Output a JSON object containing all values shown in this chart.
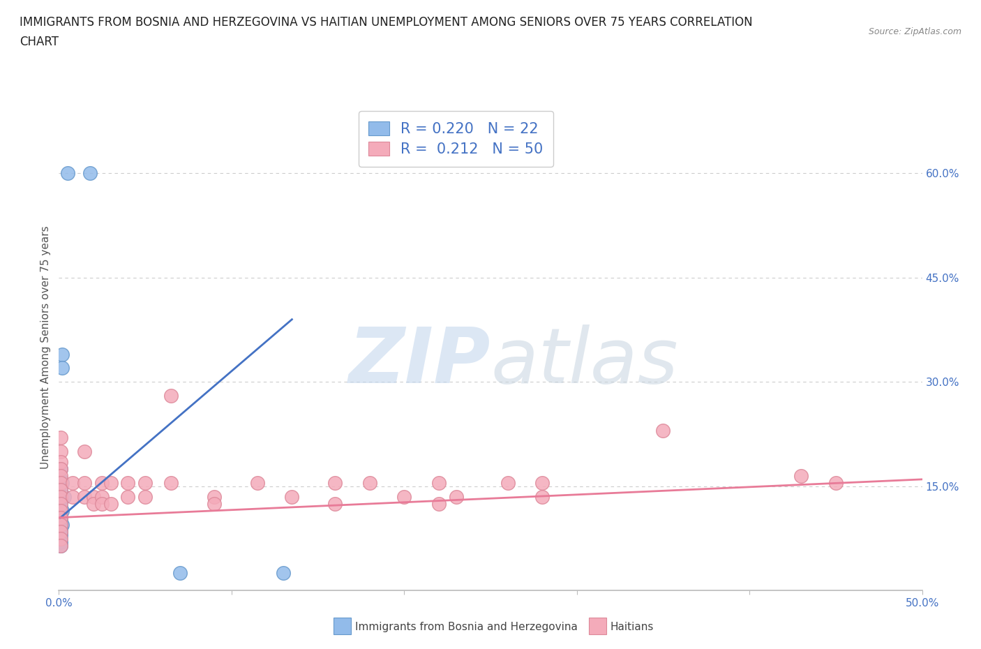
{
  "title_line1": "IMMIGRANTS FROM BOSNIA AND HERZEGOVINA VS HAITIAN UNEMPLOYMENT AMONG SENIORS OVER 75 YEARS CORRELATION",
  "title_line2": "CHART",
  "source": "Source: ZipAtlas.com",
  "ylabel": "Unemployment Among Seniors over 75 years",
  "xlim": [
    0,
    0.5
  ],
  "ylim": [
    0,
    0.7
  ],
  "xticks": [
    0.0,
    0.1,
    0.2,
    0.3,
    0.4,
    0.5
  ],
  "xticklabels": [
    "0.0%",
    "",
    "",
    "",
    "",
    "50.0%"
  ],
  "yticks_right": [
    0.15,
    0.3,
    0.45,
    0.6
  ],
  "ytick_right_labels": [
    "15.0%",
    "30.0%",
    "45.0%",
    "60.0%"
  ],
  "legend_blue_r": "R = 0.220",
  "legend_blue_n": "N = 22",
  "legend_pink_r": "R =  0.212",
  "legend_pink_n": "N = 50",
  "legend_label_blue": "Immigrants from Bosnia and Herzegovina",
  "legend_label_pink": "Haitians",
  "blue_color": "#92BBEA",
  "blue_edge_color": "#6699CC",
  "pink_color": "#F4ABBA",
  "pink_edge_color": "#DD8899",
  "trend_blue_color": "#4472C4",
  "trend_pink_color": "#E87B98",
  "background_color": "#FFFFFF",
  "grid_color": "#CCCCCC",
  "blue_scatter": [
    [
      0.005,
      0.6
    ],
    [
      0.018,
      0.6
    ],
    [
      0.002,
      0.34
    ],
    [
      0.002,
      0.32
    ],
    [
      0.001,
      0.175
    ],
    [
      0.001,
      0.16
    ],
    [
      0.002,
      0.155
    ],
    [
      0.001,
      0.145
    ],
    [
      0.003,
      0.135
    ],
    [
      0.001,
      0.13
    ],
    [
      0.001,
      0.12
    ],
    [
      0.002,
      0.115
    ],
    [
      0.001,
      0.105
    ],
    [
      0.001,
      0.1
    ],
    [
      0.002,
      0.095
    ],
    [
      0.001,
      0.09
    ],
    [
      0.001,
      0.085
    ],
    [
      0.001,
      0.08
    ],
    [
      0.001,
      0.07
    ],
    [
      0.001,
      0.065
    ],
    [
      0.07,
      0.025
    ],
    [
      0.13,
      0.025
    ]
  ],
  "pink_scatter": [
    [
      0.001,
      0.22
    ],
    [
      0.001,
      0.2
    ],
    [
      0.001,
      0.185
    ],
    [
      0.001,
      0.175
    ],
    [
      0.001,
      0.165
    ],
    [
      0.001,
      0.155
    ],
    [
      0.001,
      0.145
    ],
    [
      0.001,
      0.135
    ],
    [
      0.001,
      0.125
    ],
    [
      0.001,
      0.115
    ],
    [
      0.001,
      0.105
    ],
    [
      0.001,
      0.095
    ],
    [
      0.001,
      0.085
    ],
    [
      0.001,
      0.075
    ],
    [
      0.001,
      0.065
    ],
    [
      0.008,
      0.155
    ],
    [
      0.008,
      0.135
    ],
    [
      0.015,
      0.2
    ],
    [
      0.015,
      0.155
    ],
    [
      0.015,
      0.135
    ],
    [
      0.02,
      0.135
    ],
    [
      0.02,
      0.125
    ],
    [
      0.025,
      0.155
    ],
    [
      0.025,
      0.135
    ],
    [
      0.025,
      0.125
    ],
    [
      0.03,
      0.155
    ],
    [
      0.03,
      0.125
    ],
    [
      0.04,
      0.155
    ],
    [
      0.04,
      0.135
    ],
    [
      0.05,
      0.155
    ],
    [
      0.05,
      0.135
    ],
    [
      0.065,
      0.28
    ],
    [
      0.065,
      0.155
    ],
    [
      0.09,
      0.135
    ],
    [
      0.09,
      0.125
    ],
    [
      0.115,
      0.155
    ],
    [
      0.135,
      0.135
    ],
    [
      0.16,
      0.155
    ],
    [
      0.16,
      0.125
    ],
    [
      0.18,
      0.155
    ],
    [
      0.2,
      0.135
    ],
    [
      0.22,
      0.155
    ],
    [
      0.22,
      0.125
    ],
    [
      0.23,
      0.135
    ],
    [
      0.26,
      0.155
    ],
    [
      0.28,
      0.155
    ],
    [
      0.28,
      0.135
    ],
    [
      0.35,
      0.23
    ],
    [
      0.43,
      0.165
    ],
    [
      0.45,
      0.155
    ]
  ],
  "blue_trend_x": [
    0.001,
    0.135
  ],
  "blue_trend_y": [
    0.105,
    0.39
  ],
  "pink_trend_x": [
    0.0,
    0.5
  ],
  "pink_trend_y": [
    0.105,
    0.16
  ]
}
